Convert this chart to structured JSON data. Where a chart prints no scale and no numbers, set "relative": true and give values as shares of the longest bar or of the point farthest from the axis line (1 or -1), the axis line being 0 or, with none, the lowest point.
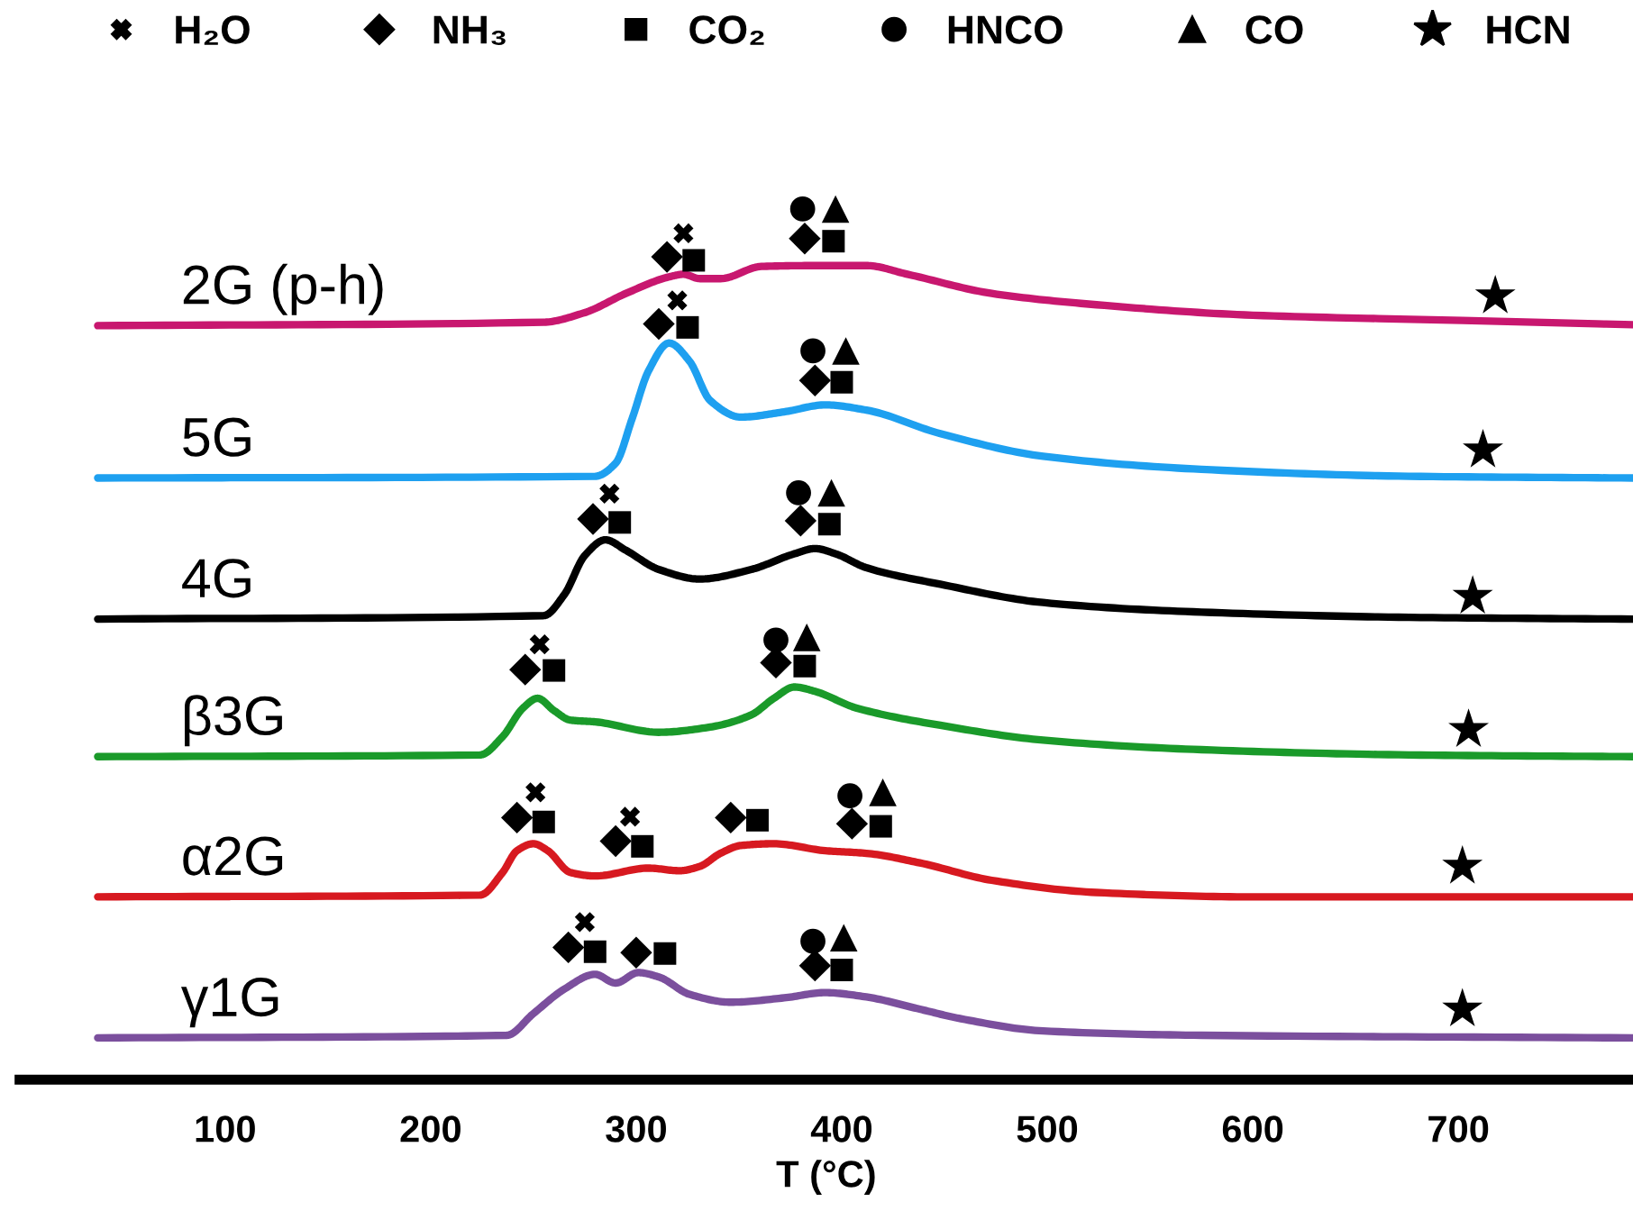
{
  "chart_data": {
    "type": "line",
    "relative": true,
    "xlabel": "T (°C)",
    "xlim": [
      0,
      785
    ],
    "xticks": [
      100,
      200,
      300,
      400,
      500,
      600,
      700
    ],
    "grid": false,
    "legend": "top",
    "tick_labels": "x",
    "line_style": "solid",
    "series": [
      {
        "name": "2G (p-h)",
        "color": "#c8176f",
        "x": [
          38,
          255,
          275,
          295,
          316,
          323,
          331,
          341,
          361,
          387,
          412,
          432,
          473,
          524,
          600,
          702,
          785
        ],
        "values": [
          0.866,
          0.87,
          0.881,
          0.903,
          0.922,
          0.925,
          0.92,
          0.92,
          0.934,
          0.935,
          0.935,
          0.925,
          0.903,
          0.89,
          0.878,
          0.872,
          0.867
        ]
      },
      {
        "name": "5G",
        "color": "#1ea0f0",
        "x": [
          38,
          280,
          290,
          298,
          306,
          316,
          326,
          336,
          351,
          372,
          392,
          412,
          448,
          498,
          575,
          676,
          785
        ],
        "values": [
          0.691,
          0.693,
          0.708,
          0.759,
          0.814,
          0.846,
          0.825,
          0.78,
          0.761,
          0.767,
          0.775,
          0.769,
          0.742,
          0.716,
          0.701,
          0.693,
          0.691
        ]
      },
      {
        "name": "4G",
        "color": "#000000",
        "x": [
          38,
          255,
          265,
          275,
          285,
          295,
          311,
          331,
          356,
          377,
          387,
          397,
          412,
          448,
          498,
          575,
          676,
          785
        ],
        "values": [
          0.529,
          0.533,
          0.557,
          0.602,
          0.62,
          0.608,
          0.586,
          0.575,
          0.586,
          0.604,
          0.61,
          0.604,
          0.588,
          0.569,
          0.548,
          0.537,
          0.531,
          0.529
        ]
      },
      {
        "name": "β3G",
        "color": "#1a9a2a",
        "x": [
          38,
          224,
          235,
          245,
          252,
          260,
          268,
          280,
          311,
          336,
          356,
          367,
          377,
          387,
          407,
          448,
          498,
          575,
          676,
          785
        ],
        "values": [
          0.371,
          0.373,
          0.394,
          0.427,
          0.438,
          0.424,
          0.413,
          0.411,
          0.399,
          0.405,
          0.419,
          0.438,
          0.451,
          0.446,
          0.427,
          0.407,
          0.39,
          0.379,
          0.373,
          0.371
        ]
      },
      {
        "name": "α2G",
        "color": "#d71920",
        "x": [
          38,
          224,
          235,
          242,
          250,
          257,
          268,
          280,
          306,
          321,
          331,
          341,
          351,
          367,
          392,
          412,
          438,
          473,
          524,
          600,
          785
        ],
        "values": [
          0.21,
          0.212,
          0.238,
          0.263,
          0.271,
          0.263,
          0.238,
          0.234,
          0.243,
          0.24,
          0.245,
          0.26,
          0.269,
          0.271,
          0.263,
          0.26,
          0.249,
          0.229,
          0.215,
          0.21,
          0.21
        ]
      },
      {
        "name": "γ1G",
        "color": "#7b4f9d",
        "x": [
          38,
          237,
          250,
          265,
          280,
          290,
          301,
          311,
          326,
          346,
          372,
          392,
          412,
          438,
          458,
          498,
          575,
          785
        ],
        "values": [
          0.048,
          0.051,
          0.076,
          0.104,
          0.121,
          0.111,
          0.123,
          0.118,
          0.098,
          0.089,
          0.094,
          0.1,
          0.095,
          0.081,
          0.07,
          0.056,
          0.051,
          0.048
        ]
      },
      {
        "name": "H₂O",
        "type": "scatter",
        "marker": "cross",
        "color": "#000000",
        "x": [
          323,
          320,
          287,
          253,
          251,
          297,
          275
        ],
        "values": [
          0.972,
          0.895,
          0.673,
          0.5,
          0.33,
          0.302,
          0.181
        ]
      },
      {
        "name": "NH₃",
        "type": "scatter",
        "marker": "diamond",
        "color": "#000000",
        "x": [
          315,
          382,
          311,
          387,
          279,
          380,
          246,
          368,
          242,
          290,
          346,
          405,
          267,
          300,
          387
        ],
        "values": [
          0.945,
          0.966,
          0.868,
          0.803,
          0.644,
          0.642,
          0.471,
          0.479,
          0.301,
          0.274,
          0.301,
          0.294,
          0.152,
          0.146,
          0.131
        ]
      },
      {
        "name": "CO₂",
        "type": "scatter",
        "marker": "square",
        "color": "#000000",
        "x": [
          328,
          396,
          325,
          400,
          292,
          394,
          260,
          382,
          255,
          303,
          359,
          419,
          280,
          314,
          400
        ],
        "values": [
          0.941,
          0.963,
          0.864,
          0.801,
          0.64,
          0.638,
          0.47,
          0.475,
          0.296,
          0.268,
          0.298,
          0.291,
          0.147,
          0.145,
          0.126
        ]
      },
      {
        "name": "HNCO",
        "type": "scatter",
        "marker": "circle",
        "color": "#000000",
        "x": [
          381,
          386,
          379,
          368,
          404,
          386
        ],
        "values": [
          1.0,
          0.837,
          0.674,
          0.505,
          0.326,
          0.159
        ]
      },
      {
        "name": "CO",
        "type": "scatter",
        "marker": "triangle",
        "color": "#000000",
        "x": [
          397,
          402,
          395,
          383,
          420,
          401
        ],
        "values": [
          1.0,
          0.837,
          0.674,
          0.508,
          0.33,
          0.163
        ]
      },
      {
        "name": "HCN",
        "type": "scatter",
        "marker": "star",
        "color": "#000000",
        "x": [
          718,
          712,
          707,
          705,
          702,
          702
        ],
        "values": [
          0.9,
          0.723,
          0.555,
          0.402,
          0.245,
          0.081
        ]
      }
    ]
  }
}
